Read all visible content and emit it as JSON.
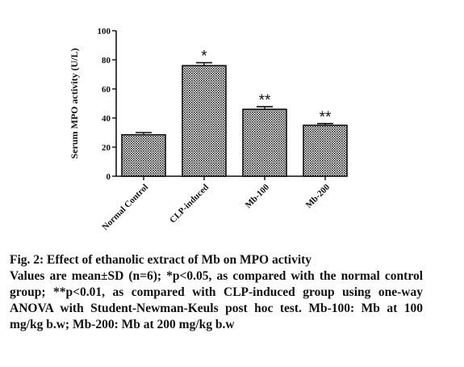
{
  "chart_data": {
    "type": "bar",
    "categories": [
      "Normal Control",
      "CLP-induced",
      "Mb-100",
      "Mb-200"
    ],
    "values": [
      28.5,
      76,
      46,
      35
    ],
    "error": [
      1.5,
      2,
      1.8,
      1.2
    ],
    "significance": [
      "",
      "*",
      "**",
      "**"
    ],
    "ylabel": "Serum MPO activity (U/L)",
    "xlabel": "",
    "ylim": [
      0,
      100
    ],
    "yticks": [
      0,
      20,
      40,
      60,
      80,
      100
    ],
    "bar_pattern": "crosshatch",
    "bar_color": "#1a1a1a",
    "grid": false
  },
  "caption": {
    "title": "Fig. 2: Effect of ethanolic extract of Mb on MPO activity",
    "body": "Values are mean±SD (n=6); *p<0.05, as compared with the normal control group; **p<0.01, as compared with CLP-induced group using one-way ANOVA with Student-Newman-Keuls post hoc test. Mb-100: Mb at 100 mg/kg b.w; Mb-200: Mb at 200 mg/kg b.w"
  }
}
